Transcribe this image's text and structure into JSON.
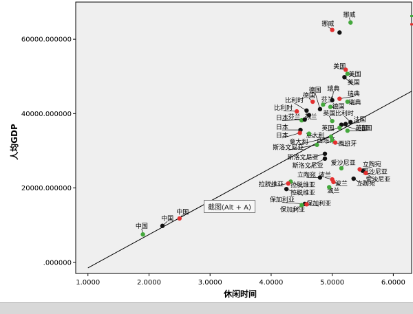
{
  "chart_data": {
    "type": "scatter",
    "xlabel": "休闲时间",
    "ylabel": "人均GDP",
    "xlim": [
      0.8,
      6.3
    ],
    "ylim": [
      -3000,
      70000
    ],
    "x_ticks": [
      1.0,
      2.0,
      3.0,
      4.0,
      5.0,
      6.0
    ],
    "x_tick_labels": [
      "1.0000",
      "2.0000",
      "3.0000",
      "4.0000",
      "5.0000",
      "6.0000"
    ],
    "y_ticks": [
      0,
      20000,
      40000,
      60000
    ],
    "y_tick_labels": [
      ".000000",
      "20000.000000",
      "40000.000000",
      "60000.000000"
    ],
    "fit_line": {
      "x1": 1.0,
      "y1": -1500,
      "x2": 6.3,
      "y2": 46000
    },
    "colors": {
      "green": "#44a83c",
      "red": "#e33030",
      "black": "#111111",
      "plot_bg": "#efefef"
    },
    "points": [
      {
        "label": "中国",
        "x": 1.9,
        "y": 7500,
        "color": "green"
      },
      {
        "label": "中国",
        "x": 2.22,
        "y": 9800,
        "color": "black"
      },
      {
        "label": "中国",
        "x": 2.5,
        "y": 11800,
        "color": "red"
      },
      {
        "label": "挪威",
        "x": 5.3,
        "y": 64500,
        "color": "green"
      },
      {
        "label": "挪威",
        "x": 5.0,
        "y": 62500,
        "color": "red"
      },
      {
        "label": "",
        "x": 5.12,
        "y": 61800,
        "color": "black"
      },
      {
        "label": "美国",
        "x": 5.22,
        "y": 51800,
        "color": "red"
      },
      {
        "label": "美国",
        "x": 5.25,
        "y": 50700,
        "color": "green"
      },
      {
        "label": "美国",
        "x": 5.2,
        "y": 49800,
        "color": "black"
      },
      {
        "label": "瑞典",
        "x": 5.12,
        "y": 44000,
        "color": "red"
      },
      {
        "label": "瑞典",
        "x": 5.25,
        "y": 43200,
        "color": "green"
      },
      {
        "label": "瑞典",
        "x": 5.0,
        "y": 43600,
        "color": "black"
      },
      {
        "label": "芬兰",
        "x": 4.85,
        "y": 42400,
        "color": "green"
      },
      {
        "label": "德国",
        "x": 4.68,
        "y": 43200,
        "color": "red"
      },
      {
        "label": "德国",
        "x": 4.97,
        "y": 41800,
        "color": "green"
      },
      {
        "label": "德国",
        "x": 4.8,
        "y": 41200,
        "color": "black"
      },
      {
        "label": "比利时",
        "x": 4.58,
        "y": 40800,
        "color": "black"
      },
      {
        "label": "比利时",
        "x": 4.42,
        "y": 40600,
        "color": "red"
      },
      {
        "label": "比利时",
        "x": 5.3,
        "y": 37700,
        "color": "black"
      },
      {
        "label": "英国",
        "x": 5.0,
        "y": 38000,
        "color": "green"
      },
      {
        "label": "英国",
        "x": 5.15,
        "y": 37000,
        "color": "black"
      },
      {
        "label": "英国",
        "x": 5.12,
        "y": 36200,
        "color": "green"
      },
      {
        "label": "法国",
        "x": 5.22,
        "y": 37200,
        "color": "black"
      },
      {
        "label": "法国",
        "x": 5.25,
        "y": 35400,
        "color": "green"
      },
      {
        "label": "芬兰",
        "x": 4.62,
        "y": 39600,
        "color": "black"
      },
      {
        "label": "芬兰",
        "x": 4.5,
        "y": 38200,
        "color": "green"
      },
      {
        "label": "日本",
        "x": 4.55,
        "y": 38400,
        "color": "black"
      },
      {
        "label": "日本",
        "x": 4.48,
        "y": 35600,
        "color": "black"
      },
      {
        "label": "日本",
        "x": 4.47,
        "y": 34800,
        "color": "red"
      },
      {
        "label": "意大利",
        "x": 4.62,
        "y": 34600,
        "color": "green"
      },
      {
        "label": "意大利",
        "x": 4.98,
        "y": 33800,
        "color": "green"
      },
      {
        "label": "西班牙",
        "x": 5.0,
        "y": 32800,
        "color": "green"
      },
      {
        "label": "西班牙",
        "x": 5.05,
        "y": 32200,
        "color": "red"
      },
      {
        "label": "斯洛文尼亚",
        "x": 4.75,
        "y": 31600,
        "color": "green"
      },
      {
        "label": "斯洛文尼亚",
        "x": 4.88,
        "y": 29200,
        "color": "black"
      },
      {
        "label": "斯洛文尼亚",
        "x": 4.88,
        "y": 27900,
        "color": "black"
      },
      {
        "label": "爱沙尼亚",
        "x": 5.15,
        "y": 25300,
        "color": "green"
      },
      {
        "label": "爱沙尼亚",
        "x": 5.5,
        "y": 24600,
        "color": "black"
      },
      {
        "label": "爱沙尼亚",
        "x": 5.55,
        "y": 24000,
        "color": "red"
      },
      {
        "label": "立陶宛",
        "x": 5.45,
        "y": 25000,
        "color": "red"
      },
      {
        "label": "立陶宛",
        "x": 5.35,
        "y": 22500,
        "color": "black"
      },
      {
        "label": "立陶宛",
        "x": 4.8,
        "y": 22800,
        "color": "black"
      },
      {
        "label": "波兰",
        "x": 5.0,
        "y": 22300,
        "color": "red"
      },
      {
        "label": "波兰",
        "x": 5.02,
        "y": 21600,
        "color": "red"
      },
      {
        "label": "波兰",
        "x": 4.95,
        "y": 20200,
        "color": "green"
      },
      {
        "label": "拉脱维亚",
        "x": 4.32,
        "y": 21700,
        "color": "green"
      },
      {
        "label": "拉脱维亚",
        "x": 4.28,
        "y": 21200,
        "color": "red"
      },
      {
        "label": "拉脱维亚",
        "x": 4.25,
        "y": 19700,
        "color": "black"
      },
      {
        "label": "保加利亚",
        "x": 4.55,
        "y": 15700,
        "color": "black"
      },
      {
        "label": "保加利亚",
        "x": 4.58,
        "y": 15600,
        "color": "red"
      },
      {
        "label": "保加利亚",
        "x": 4.5,
        "y": 15400,
        "color": "green"
      }
    ],
    "labels": [
      {
        "text": "挪威",
        "x": 5.28,
        "y": 66000,
        "pt": [
          5.3,
          64500
        ]
      },
      {
        "text": "挪威",
        "x": 4.93,
        "y": 63600,
        "pt": [
          5.0,
          62500
        ]
      },
      {
        "text": "美国",
        "x": 5.12,
        "y": 52200,
        "pt": [
          5.22,
          51800
        ]
      },
      {
        "text": "美国",
        "x": 5.37,
        "y": 50000,
        "pt": [
          5.25,
          50700
        ]
      },
      {
        "text": "美国",
        "x": 5.35,
        "y": 47800,
        "pt": [
          5.2,
          49800
        ]
      },
      {
        "text": "瑞典",
        "x": 5.02,
        "y": 46200,
        "pt": [
          5.0,
          43600
        ]
      },
      {
        "text": "瑞典",
        "x": 5.35,
        "y": 44800,
        "pt": [
          5.12,
          44000
        ]
      },
      {
        "text": "瑞典",
        "x": 5.37,
        "y": 42500,
        "pt": [
          5.25,
          43200
        ]
      },
      {
        "text": "德国",
        "x": 4.72,
        "y": 45800,
        "pt": [
          4.8,
          41200
        ]
      },
      {
        "text": "德国",
        "x": 4.62,
        "y": 44300,
        "pt": [
          4.68,
          43200
        ]
      },
      {
        "text": "芬兰",
        "x": 4.92,
        "y": 43200,
        "pt": [
          4.85,
          42400
        ]
      },
      {
        "text": "德国",
        "x": 5.1,
        "y": 41400,
        "pt": [
          4.97,
          41800
        ]
      },
      {
        "text": "比利时",
        "x": 4.38,
        "y": 43000,
        "pt": [
          4.58,
          40800
        ]
      },
      {
        "text": "比利时",
        "x": 4.2,
        "y": 41000,
        "pt": [
          4.42,
          40600
        ]
      },
      {
        "text": "比利时",
        "x": 5.2,
        "y": 39500,
        "pt": [
          5.3,
          37700
        ]
      },
      {
        "text": "英国",
        "x": 4.95,
        "y": 39500,
        "pt": [
          5.0,
          38000
        ]
      },
      {
        "text": "法国",
        "x": 5.45,
        "y": 37800,
        "pt": [
          5.22,
          37200
        ]
      },
      {
        "text": "英国",
        "x": 5.48,
        "y": 35500,
        "pt": [
          5.15,
          37000
        ]
      },
      {
        "text": "法国",
        "x": 5.55,
        "y": 35500,
        "pt": [
          5.25,
          35400
        ]
      },
      {
        "text": "英国",
        "x": 4.93,
        "y": 35500,
        "pt": [
          5.12,
          36200
        ]
      },
      {
        "text": "芬兰",
        "x": 4.38,
        "y": 38600,
        "pt": [
          4.5,
          38200
        ]
      },
      {
        "text": "芬兰",
        "x": 4.65,
        "y": 38600,
        "pt": [
          4.62,
          39600
        ]
      },
      {
        "text": "日本",
        "x": 4.18,
        "y": 38300,
        "pt": [
          4.55,
          38400
        ]
      },
      {
        "text": "日本",
        "x": 4.18,
        "y": 35800,
        "pt": [
          4.48,
          35600
        ]
      },
      {
        "text": "日本",
        "x": 4.18,
        "y": 33600,
        "pt": [
          4.47,
          34800
        ]
      },
      {
        "text": "意大利",
        "x": 4.72,
        "y": 33600,
        "pt": [
          4.62,
          34600
        ]
      },
      {
        "text": "意大利",
        "x": 4.45,
        "y": 31800,
        "pt": [
          4.98,
          33800
        ]
      },
      {
        "text": "西班牙",
        "x": 4.9,
        "y": 32200,
        "pt": [
          5.0,
          32800
        ]
      },
      {
        "text": "西班牙",
        "x": 5.25,
        "y": 31400,
        "pt": [
          5.05,
          32200
        ]
      },
      {
        "text": "斯洛文尼亚",
        "x": 4.28,
        "y": 30400,
        "pt": [
          4.75,
          31600
        ]
      },
      {
        "text": "斯洛文尼亚",
        "x": 4.52,
        "y": 27700,
        "pt": [
          4.88,
          29200
        ]
      },
      {
        "text": "斯洛文尼亚",
        "x": 4.6,
        "y": 25500,
        "pt": [
          4.88,
          27900
        ]
      },
      {
        "text": "爱沙尼亚",
        "x": 5.18,
        "y": 26200,
        "pt": [
          5.15,
          25300
        ]
      },
      {
        "text": "立陶宛",
        "x": 5.65,
        "y": 25800,
        "pt": [
          5.45,
          25000
        ]
      },
      {
        "text": "爱沙尼亚",
        "x": 5.7,
        "y": 23800,
        "pt": [
          5.55,
          24000
        ]
      },
      {
        "text": "立陶宛",
        "x": 4.58,
        "y": 23000,
        "pt": [
          4.8,
          22800
        ]
      },
      {
        "text": "波兰",
        "x": 4.88,
        "y": 23000,
        "pt": [
          5.0,
          22300
        ]
      },
      {
        "text": "爱沙尼亚",
        "x": 5.75,
        "y": 21800,
        "pt": [
          5.5,
          24600
        ]
      },
      {
        "text": "波兰",
        "x": 5.15,
        "y": 20700,
        "pt": [
          5.02,
          21600
        ]
      },
      {
        "text": "立陶宛",
        "x": 5.55,
        "y": 20700,
        "pt": [
          5.35,
          22500
        ]
      },
      {
        "text": "波兰",
        "x": 5.02,
        "y": 18700,
        "pt": [
          4.95,
          20200
        ]
      },
      {
        "text": "拉脱维亚",
        "x": 4.0,
        "y": 20500,
        "pt": [
          4.28,
          21200
        ]
      },
      {
        "text": "拉脱维亚",
        "x": 4.52,
        "y": 20300,
        "pt": [
          4.32,
          21700
        ]
      },
      {
        "text": "拉脱维亚",
        "x": 4.52,
        "y": 18200,
        "pt": [
          4.25,
          19700
        ]
      },
      {
        "text": "保加利亚",
        "x": 4.18,
        "y": 16300,
        "pt": [
          4.55,
          15700
        ]
      },
      {
        "text": "保加利亚",
        "x": 4.78,
        "y": 15300,
        "pt": [
          4.58,
          15600
        ]
      },
      {
        "text": "保加利亚",
        "x": 4.35,
        "y": 13600,
        "pt": [
          4.5,
          15400
        ]
      },
      {
        "text": "中国",
        "x": 2.55,
        "y": 13000,
        "pt": [
          2.5,
          11800
        ]
      },
      {
        "text": "中国",
        "x": 2.3,
        "y": 11200,
        "pt": [
          2.22,
          9800
        ]
      },
      {
        "text": "中国",
        "x": 1.88,
        "y": 9200,
        "pt": [
          1.9,
          7500
        ]
      }
    ]
  },
  "tooltip": {
    "text": "截图(Alt + A)"
  }
}
